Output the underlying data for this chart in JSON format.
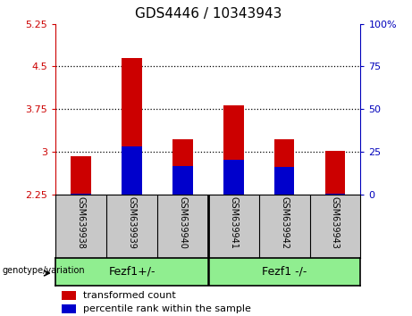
{
  "title": "GDS4446 / 10343943",
  "samples": [
    "GSM639938",
    "GSM639939",
    "GSM639940",
    "GSM639941",
    "GSM639942",
    "GSM639943"
  ],
  "red_values": [
    2.92,
    4.65,
    3.22,
    3.82,
    3.22,
    3.01
  ],
  "blue_values": [
    2.268,
    3.1,
    2.75,
    2.855,
    2.73,
    2.268
  ],
  "ymin": 2.25,
  "ymax": 5.25,
  "yticks_left": [
    2.25,
    3.0,
    3.75,
    4.5,
    5.25
  ],
  "ytick_labels_left": [
    "2.25",
    "3",
    "3.75",
    "4.5",
    "5.25"
  ],
  "yticks_right_pct": [
    0,
    25,
    50,
    75,
    100
  ],
  "ytick_labels_right": [
    "0",
    "25",
    "50",
    "75",
    "100%"
  ],
  "dotted_lines": [
    3.0,
    3.75,
    4.5
  ],
  "group1_label": "Fezf1+/-",
  "group2_label": "Fezf1 -/-",
  "group_color": "#90EE90",
  "group_label_text": "genotype/variation",
  "red_color": "#CC0000",
  "blue_color": "#0000CC",
  "bar_width": 0.4,
  "left_tick_color": "#CC0000",
  "right_tick_color": "#0000BB",
  "gray_color": "#C8C8C8",
  "legend_red_label": "transformed count",
  "legend_blue_label": "percentile rank within the sample"
}
